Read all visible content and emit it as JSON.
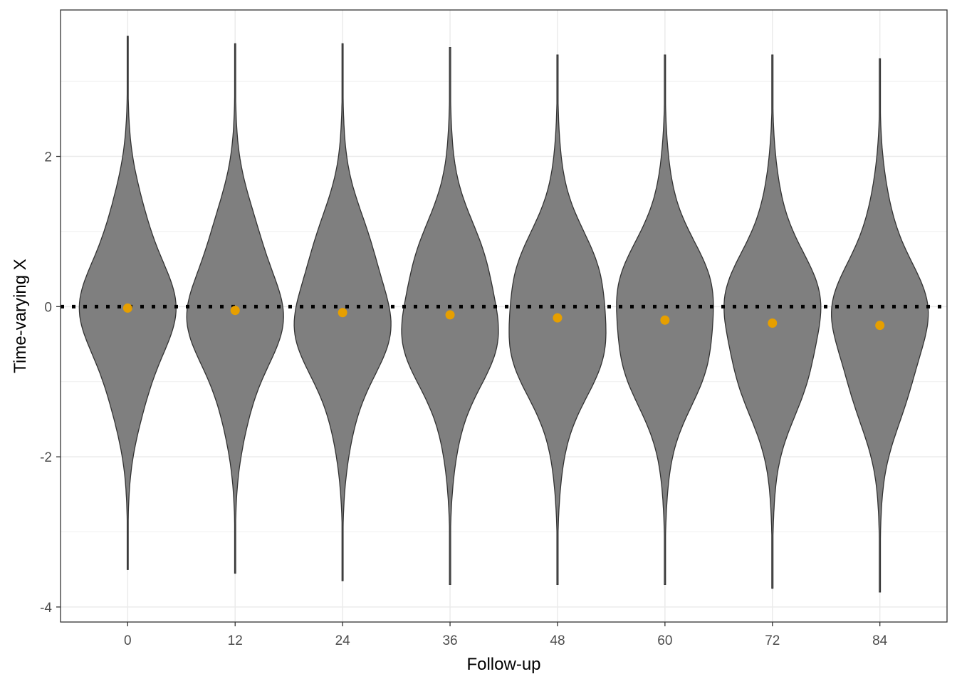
{
  "chart_data": {
    "type": "violin",
    "title": "",
    "xlabel": "Follow-up",
    "ylabel": "Time-varying X",
    "categories": [
      "0",
      "12",
      "24",
      "36",
      "48",
      "60",
      "72",
      "84"
    ],
    "x_values": [
      0,
      12,
      24,
      36,
      48,
      60,
      72,
      84
    ],
    "means": [
      -0.02,
      -0.05,
      -0.08,
      -0.11,
      -0.15,
      -0.18,
      -0.22,
      -0.25
    ],
    "ranges": [
      {
        "min": -3.5,
        "max": 3.6
      },
      {
        "min": -3.55,
        "max": 3.5
      },
      {
        "min": -3.65,
        "max": 3.5
      },
      {
        "min": -3.7,
        "max": 3.45
      },
      {
        "min": -3.7,
        "max": 3.35
      },
      {
        "min": -3.7,
        "max": 3.35
      },
      {
        "min": -3.75,
        "max": 3.35
      },
      {
        "min": -3.8,
        "max": 3.3
      }
    ],
    "reference_line": {
      "y": 0,
      "style": "dotted",
      "color": "#000000"
    },
    "y_ticks": [
      -4,
      -2,
      0,
      2
    ],
    "ylim": [
      -4.2,
      3.95
    ],
    "xlim": [
      -7.5,
      91.5
    ],
    "grid": true,
    "colors": {
      "violin_fill": "#7f7f7f",
      "violin_stroke": "#333333",
      "mean_point": "#e69f00",
      "grid": "#ebebeb",
      "panel_border": "#333333"
    }
  }
}
